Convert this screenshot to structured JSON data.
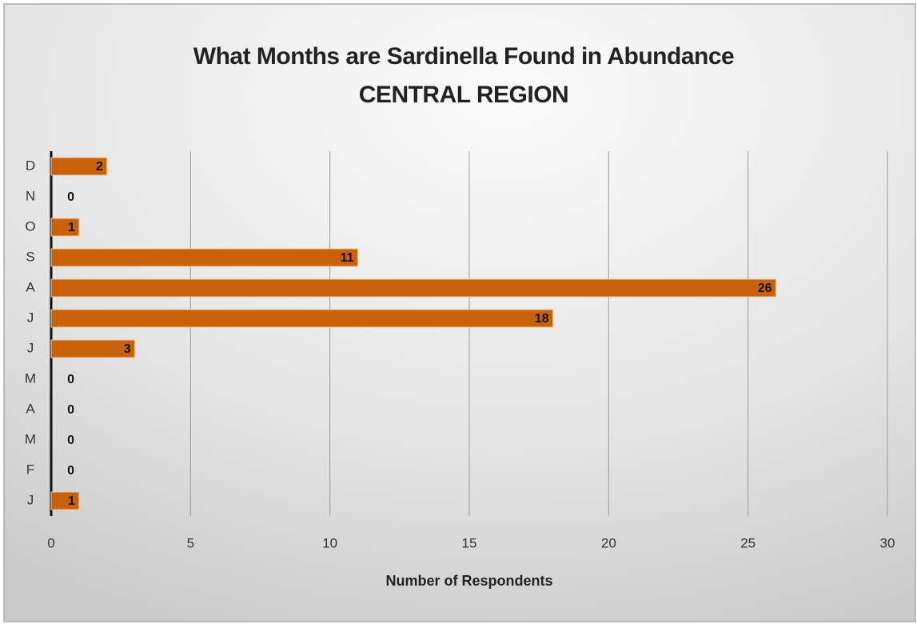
{
  "chart_data": {
    "type": "hbar",
    "title": "What Months are Sardinella Found in Abundance",
    "subtitle": "CENTRAL REGION",
    "categories": [
      "J",
      "F",
      "M",
      "A",
      "M",
      "J",
      "J",
      "A",
      "S",
      "O",
      "N",
      "D"
    ],
    "values": [
      1,
      0,
      0,
      0,
      0,
      3,
      18,
      26,
      11,
      1,
      0,
      2
    ],
    "color": "#c8620a",
    "xlabel": "Number of Respondents",
    "xlim": [
      0,
      30
    ],
    "xticks": [
      0,
      5,
      10,
      15,
      20,
      25,
      30
    ],
    "grid": true
  }
}
